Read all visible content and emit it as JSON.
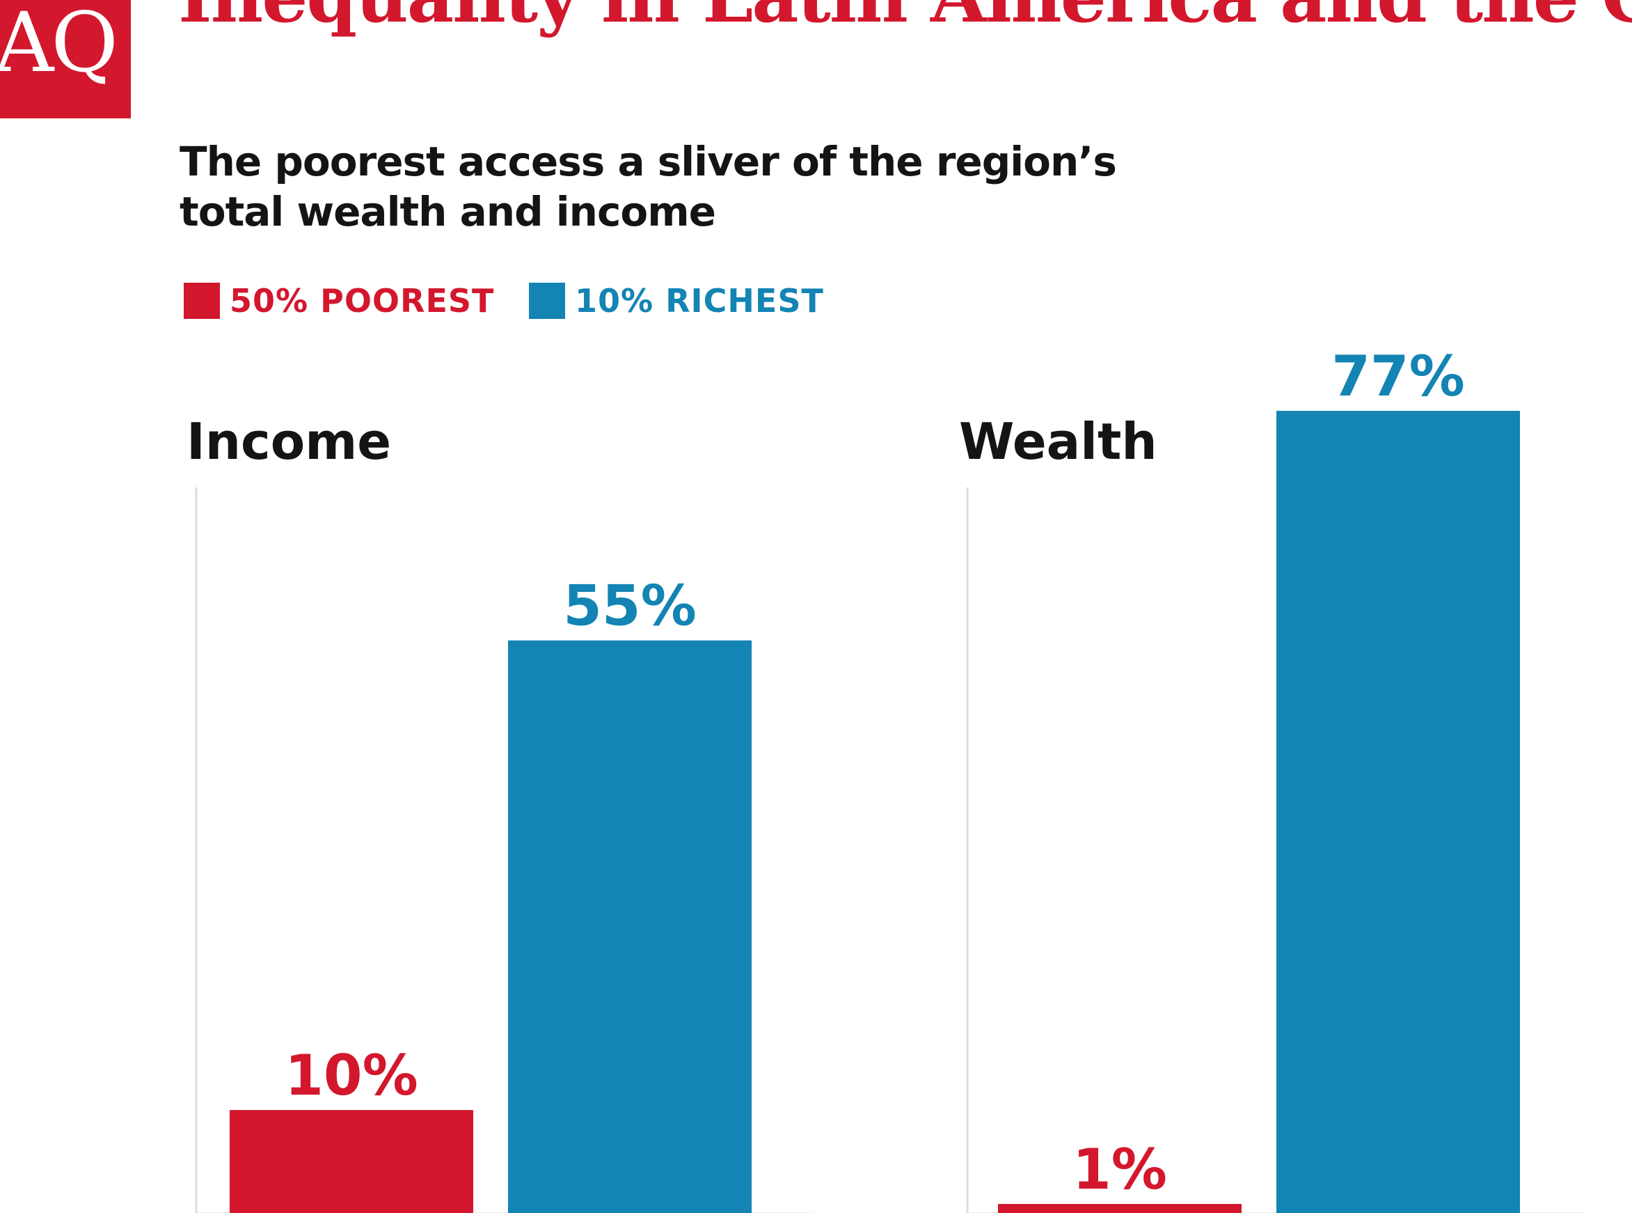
{
  "logo": {
    "text": "AQ",
    "color": "#d3172d"
  },
  "title": "Inequality in Latin America and the Caribbean",
  "subtitle": "The poorest access a sliver of the region’s total wealth and income",
  "legend": [
    {
      "label": "50% POOREST",
      "color": "#d3172d"
    },
    {
      "label": "10% RICHEST",
      "color": "#1384b3"
    }
  ],
  "chart_data": [
    {
      "type": "bar",
      "title": "Income",
      "categories": [
        "50% POOREST",
        "10% RICHEST"
      ],
      "values": [
        10,
        55
      ],
      "labels": [
        "10%",
        "55%"
      ],
      "colors": [
        "#d3172d",
        "#1384b3"
      ],
      "ylim": [
        0,
        77
      ],
      "grid": false
    },
    {
      "type": "bar",
      "title": "Wealth",
      "categories": [
        "50% POOREST",
        "10% RICHEST"
      ],
      "values": [
        1,
        77
      ],
      "labels": [
        "1%",
        "77%"
      ],
      "colors": [
        "#d3172d",
        "#1384b3"
      ],
      "ylim": [
        0,
        77
      ],
      "grid": false
    }
  ]
}
